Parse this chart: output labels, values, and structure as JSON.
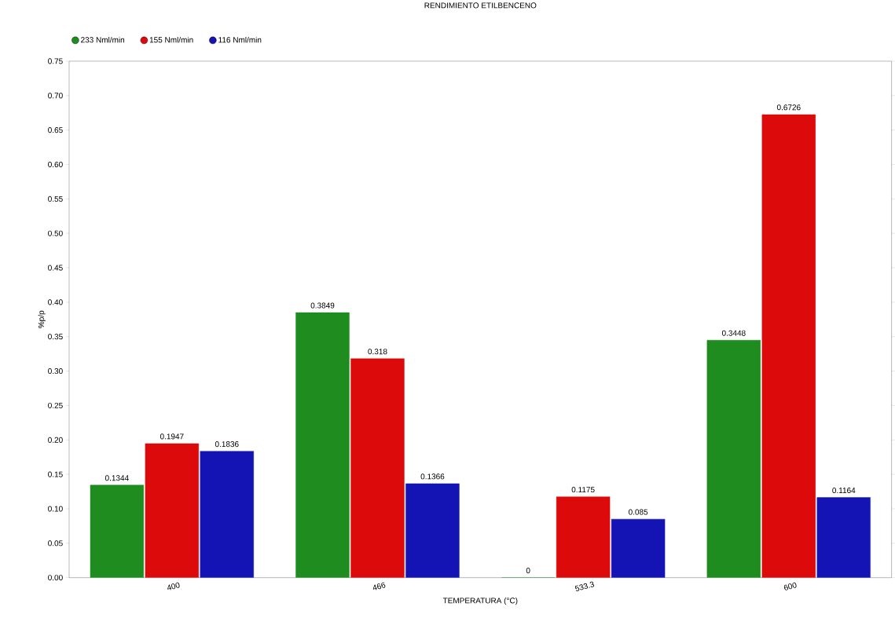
{
  "chart_data": {
    "type": "bar",
    "title": "RENDIMIENTO ETILBENCENO",
    "xlabel": "TEMPERATURA (°C)",
    "ylabel": "%p/p",
    "categories": [
      "400",
      "466",
      "533.3",
      "600"
    ],
    "series": [
      {
        "name": "233 Nml/min",
        "color": "#1e8c1e",
        "values": [
          0.1344,
          0.3849,
          0,
          0.3448
        ],
        "value_labels": [
          "0.1344",
          "0.3849",
          "0",
          "0.3448"
        ]
      },
      {
        "name": "155 Nml/min",
        "color": "#dc0a0a",
        "values": [
          0.1947,
          0.318,
          0.1175,
          0.6726
        ],
        "value_labels": [
          "0.1947",
          "0.318",
          "0.1175",
          "0.6726"
        ]
      },
      {
        "name": "116 Nml/min",
        "color": "#1414b4",
        "values": [
          0.1836,
          0.1366,
          0.085,
          0.1164
        ],
        "value_labels": [
          "0.1836",
          "0.1366",
          "0.085",
          "0.1164"
        ]
      }
    ],
    "ylim": [
      0,
      0.75
    ],
    "yticks": [
      {
        "value": 0,
        "label": "0.00"
      },
      {
        "value": 0.05,
        "label": "0.05"
      },
      {
        "value": 0.1,
        "label": "0.10"
      },
      {
        "value": 0.15,
        "label": "0.15"
      },
      {
        "value": 0.2,
        "label": "0.20"
      },
      {
        "value": 0.25,
        "label": "0.25"
      },
      {
        "value": 0.3,
        "label": "0.30"
      },
      {
        "value": 0.35,
        "label": "0.35"
      },
      {
        "value": 0.4,
        "label": "0.40"
      },
      {
        "value": 0.45,
        "label": "0.45"
      },
      {
        "value": 0.5,
        "label": "0.50"
      },
      {
        "value": 0.55,
        "label": "0.55"
      },
      {
        "value": 0.6,
        "label": "0.60"
      },
      {
        "value": 0.65,
        "label": "0.65"
      },
      {
        "value": 0.7,
        "label": "0.70"
      },
      {
        "value": 0.75,
        "label": "0.75"
      }
    ],
    "legend": "top left"
  }
}
